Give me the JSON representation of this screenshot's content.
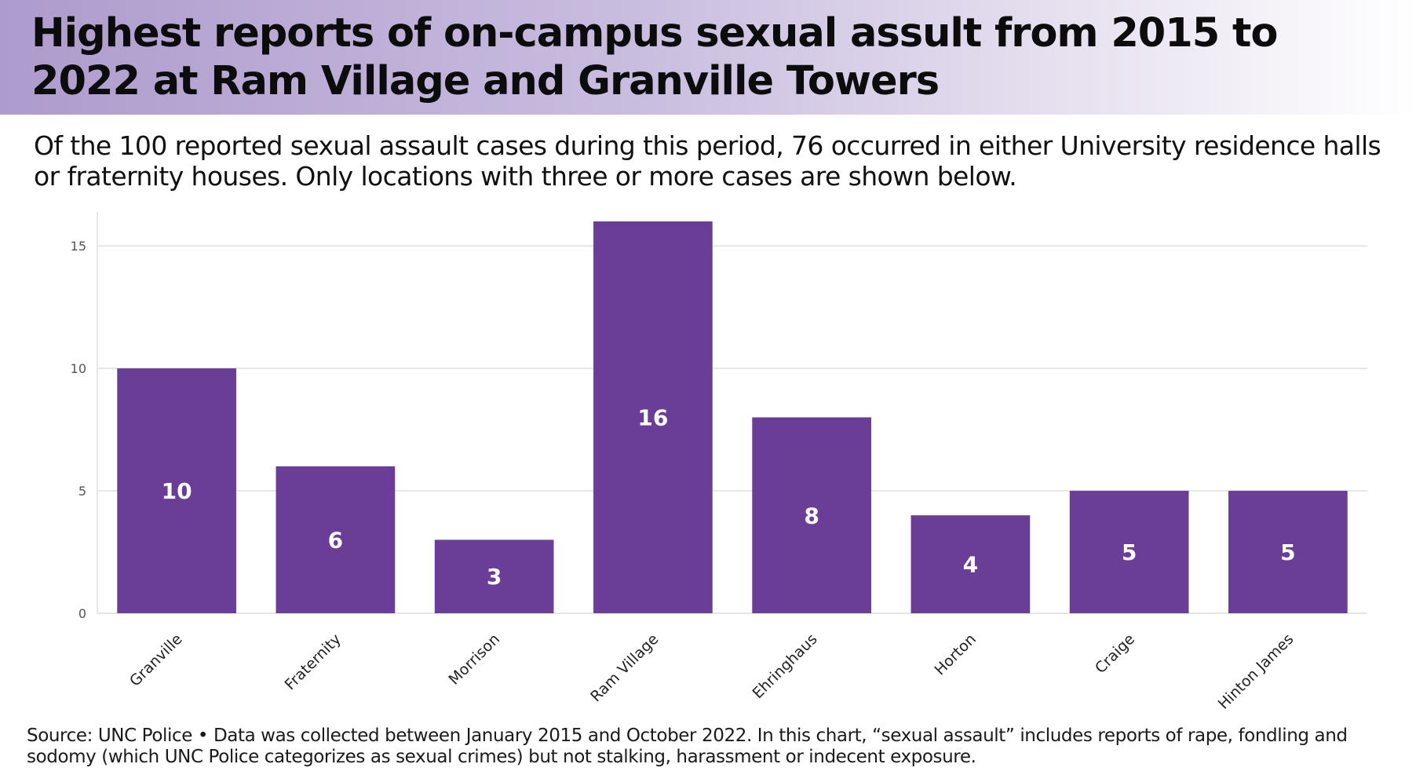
{
  "title": "Highest reports of on-campus sexual assult from 2015 to 2022 at Ram Village and Granville Towers",
  "subtitle": "Of the 100 reported sexual assault cases during this period, 76 occurred in either University residence halls or fraternity houses. Only locations with three or more cases are shown below.",
  "source": "Source: UNC Police • Data was collected between January 2015 and October 2022.  In this chart, “sexual assault” includes reports of rape, fondling and sodomy (which UNC Police categorizes as sexual crimes) but not stalking, harassment or indecent exposure.",
  "colors": {
    "bar": "#6a3e96",
    "grid": "#e6e6e6",
    "axis_text": "#555555",
    "bar_label": "#ffffff",
    "title_band_start": "#ae9bcd"
  },
  "chart_data": {
    "type": "bar",
    "categories": [
      "Granville",
      "Fraternity",
      "Morrison",
      "Ram Village",
      "Ehringhaus",
      "Horton",
      "Craige",
      "Hinton James"
    ],
    "values": [
      10,
      6,
      3,
      16,
      8,
      4,
      5,
      5
    ],
    "data_labels": [
      "10",
      "6",
      "3",
      "16",
      "8",
      "4",
      "5",
      "5"
    ],
    "ylim": [
      0,
      16
    ],
    "yticks": [
      0,
      5,
      10,
      15
    ],
    "ytick_labels": [
      "0",
      "5",
      "10",
      "15"
    ],
    "xlabel": "",
    "ylabel": "",
    "grid": true,
    "legend": false,
    "x_tick_rotation": "45-degree"
  }
}
